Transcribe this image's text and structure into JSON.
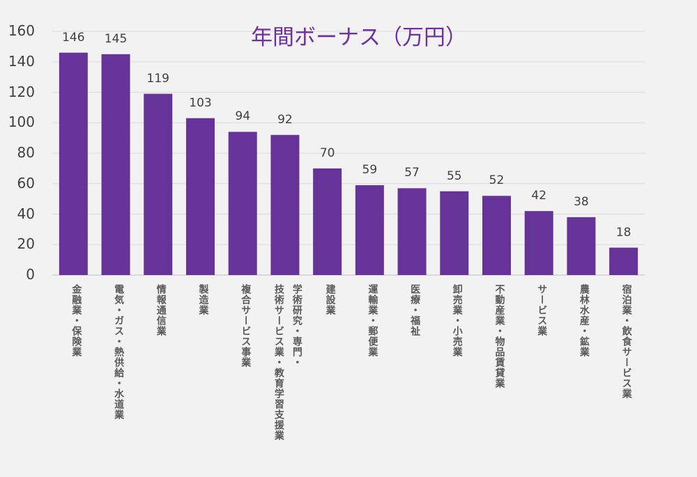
{
  "chart_data": {
    "type": "bar",
    "title": "年間ボーナス（万円）",
    "categories": [
      "金融業・保険業",
      "電気・ガス・熱供給・水道業",
      "情報通信業",
      "製造業",
      "複合サービス事業",
      "学術研究・専門・\n技術サービス業・教育学習支援業",
      "建設業",
      "運輸業・郵便業",
      "医療・福祉",
      "卸売業・小売業",
      "不動産業・物品賃貸業",
      "サービス業",
      "農林水産・鉱業",
      "宿泊業・飲食サービス業"
    ],
    "values": [
      146,
      145,
      119,
      103,
      94,
      92,
      70,
      59,
      57,
      55,
      52,
      42,
      38,
      18
    ],
    "yticks": [
      0,
      20,
      40,
      60,
      80,
      100,
      120,
      140,
      160
    ],
    "ylim": [
      0,
      160
    ],
    "grid": true,
    "bar_color": "#663399",
    "title_color": "#7030a0"
  }
}
